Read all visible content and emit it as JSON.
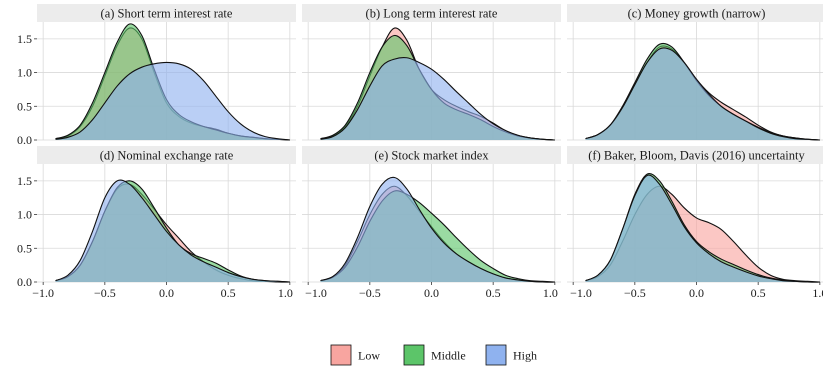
{
  "chart_data": {
    "type": "area",
    "subtype": "density-facets",
    "x_ticks": [
      -1.0,
      -0.5,
      0.0,
      0.5,
      1.0
    ],
    "x_tick_labels": [
      "−1.0",
      "−0.5",
      "0.0",
      "0.5",
      "1.0"
    ],
    "y_ticks": [
      0.0,
      0.5,
      1.0,
      1.5
    ],
    "y_tick_labels": [
      "0.0",
      "0.5",
      "1.0",
      "1.5"
    ],
    "xlim": [
      -1.0,
      1.0
    ],
    "ylim": [
      0,
      1.75
    ],
    "grid": true,
    "legend_position": "bottom",
    "legend": [
      {
        "name": "Low",
        "color": "#f8a5a0"
      },
      {
        "name": "Middle",
        "color": "#5cc569"
      },
      {
        "name": "High",
        "color": "#8fb2ef"
      }
    ],
    "overlap_color": "#5e9fa8",
    "x": [
      -0.9,
      -0.8,
      -0.7,
      -0.6,
      -0.5,
      -0.4,
      -0.3,
      -0.2,
      -0.1,
      0.0,
      0.1,
      0.2,
      0.3,
      0.4,
      0.5,
      0.6,
      0.7,
      0.8,
      0.9,
      1.0
    ],
    "panels": [
      {
        "title": "(a) Short term interest rate",
        "series": [
          {
            "name": "Low",
            "values": [
              0.02,
              0.06,
              0.2,
              0.5,
              0.95,
              1.4,
              1.66,
              1.5,
              1.0,
              0.55,
              0.35,
              0.25,
              0.2,
              0.16,
              0.1,
              0.06,
              0.04,
              0.02,
              0.01,
              0.0
            ]
          },
          {
            "name": "Middle",
            "values": [
              0.02,
              0.07,
              0.22,
              0.55,
              1.0,
              1.45,
              1.72,
              1.55,
              1.05,
              0.6,
              0.38,
              0.27,
              0.2,
              0.15,
              0.1,
              0.06,
              0.04,
              0.02,
              0.01,
              0.0
            ]
          },
          {
            "name": "High",
            "values": [
              0.01,
              0.04,
              0.12,
              0.3,
              0.55,
              0.8,
              0.98,
              1.08,
              1.13,
              1.15,
              1.13,
              1.05,
              0.88,
              0.65,
              0.42,
              0.24,
              0.12,
              0.05,
              0.02,
              0.0
            ]
          }
        ]
      },
      {
        "title": "(b) Long term interest rate",
        "series": [
          {
            "name": "Low",
            "values": [
              0.02,
              0.06,
              0.2,
              0.5,
              0.95,
              1.38,
              1.66,
              1.48,
              1.05,
              0.75,
              0.6,
              0.5,
              0.42,
              0.35,
              0.25,
              0.14,
              0.07,
              0.03,
              0.01,
              0.0
            ]
          },
          {
            "name": "Middle",
            "values": [
              0.02,
              0.07,
              0.22,
              0.55,
              1.0,
              1.38,
              1.55,
              1.4,
              1.05,
              0.75,
              0.55,
              0.45,
              0.38,
              0.3,
              0.2,
              0.12,
              0.06,
              0.03,
              0.01,
              0.0
            ]
          },
          {
            "name": "High",
            "values": [
              0.01,
              0.05,
              0.18,
              0.45,
              0.8,
              1.1,
              1.2,
              1.22,
              1.15,
              1.05,
              0.9,
              0.72,
              0.55,
              0.38,
              0.24,
              0.14,
              0.07,
              0.03,
              0.01,
              0.0
            ]
          }
        ]
      },
      {
        "title": "(c) Money growth (narrow)",
        "series": [
          {
            "name": "Low",
            "values": [
              0.02,
              0.08,
              0.22,
              0.48,
              0.82,
              1.15,
              1.38,
              1.35,
              1.15,
              0.9,
              0.7,
              0.56,
              0.45,
              0.34,
              0.22,
              0.12,
              0.06,
              0.03,
              0.01,
              0.0
            ]
          },
          {
            "name": "Middle",
            "values": [
              0.02,
              0.08,
              0.22,
              0.5,
              0.85,
              1.2,
              1.42,
              1.38,
              1.15,
              0.88,
              0.66,
              0.5,
              0.38,
              0.28,
              0.19,
              0.11,
              0.06,
              0.03,
              0.01,
              0.0
            ]
          },
          {
            "name": "High",
            "values": [
              0.02,
              0.08,
              0.22,
              0.48,
              0.82,
              1.15,
              1.35,
              1.33,
              1.15,
              0.9,
              0.68,
              0.5,
              0.38,
              0.28,
              0.18,
              0.1,
              0.05,
              0.02,
              0.01,
              0.0
            ]
          }
        ]
      },
      {
        "title": "(d) Nominal exchange rate",
        "series": [
          {
            "name": "Low",
            "values": [
              0.02,
              0.08,
              0.25,
              0.6,
              1.05,
              1.38,
              1.45,
              1.3,
              1.08,
              0.85,
              0.65,
              0.45,
              0.3,
              0.18,
              0.1,
              0.05,
              0.02,
              0.01,
              0.0,
              0.0
            ]
          },
          {
            "name": "Middle",
            "values": [
              0.02,
              0.08,
              0.25,
              0.6,
              1.05,
              1.4,
              1.5,
              1.38,
              1.1,
              0.8,
              0.55,
              0.42,
              0.35,
              0.28,
              0.18,
              0.09,
              0.04,
              0.02,
              0.01,
              0.0
            ]
          },
          {
            "name": "High",
            "values": [
              0.02,
              0.1,
              0.32,
              0.75,
              1.25,
              1.5,
              1.45,
              1.25,
              1.0,
              0.75,
              0.55,
              0.4,
              0.3,
              0.22,
              0.14,
              0.08,
              0.04,
              0.02,
              0.01,
              0.0
            ]
          }
        ]
      },
      {
        "title": "(e) Stock market index",
        "series": [
          {
            "name": "Low",
            "values": [
              0.02,
              0.08,
              0.25,
              0.6,
              1.0,
              1.3,
              1.42,
              1.28,
              1.05,
              0.82,
              0.6,
              0.42,
              0.3,
              0.2,
              0.12,
              0.06,
              0.03,
              0.01,
              0.0,
              0.0
            ]
          },
          {
            "name": "Middle",
            "values": [
              0.02,
              0.07,
              0.22,
              0.52,
              0.9,
              1.2,
              1.35,
              1.3,
              1.18,
              1.02,
              0.85,
              0.66,
              0.48,
              0.32,
              0.2,
              0.1,
              0.05,
              0.02,
              0.01,
              0.0
            ]
          },
          {
            "name": "High",
            "values": [
              0.02,
              0.08,
              0.28,
              0.66,
              1.12,
              1.45,
              1.55,
              1.38,
              1.08,
              0.8,
              0.58,
              0.42,
              0.3,
              0.2,
              0.12,
              0.06,
              0.03,
              0.01,
              0.0,
              0.0
            ]
          }
        ]
      },
      {
        "title": "(f) Baker, Bloom, Davis (2016) uncertainty",
        "series": [
          {
            "name": "Low",
            "values": [
              0.02,
              0.08,
              0.25,
              0.6,
              1.0,
              1.3,
              1.42,
              1.3,
              1.1,
              0.95,
              0.88,
              0.78,
              0.6,
              0.4,
              0.22,
              0.1,
              0.04,
              0.02,
              0.01,
              0.0
            ]
          },
          {
            "name": "Middle",
            "values": [
              0.02,
              0.1,
              0.32,
              0.78,
              1.3,
              1.6,
              1.5,
              1.2,
              0.85,
              0.6,
              0.45,
              0.34,
              0.26,
              0.18,
              0.11,
              0.06,
              0.03,
              0.01,
              0.0,
              0.0
            ]
          },
          {
            "name": "High",
            "values": [
              0.02,
              0.1,
              0.32,
              0.78,
              1.28,
              1.58,
              1.45,
              1.15,
              0.82,
              0.58,
              0.42,
              0.3,
              0.22,
              0.15,
              0.09,
              0.05,
              0.02,
              0.01,
              0.0,
              0.0
            ]
          }
        ]
      }
    ]
  }
}
